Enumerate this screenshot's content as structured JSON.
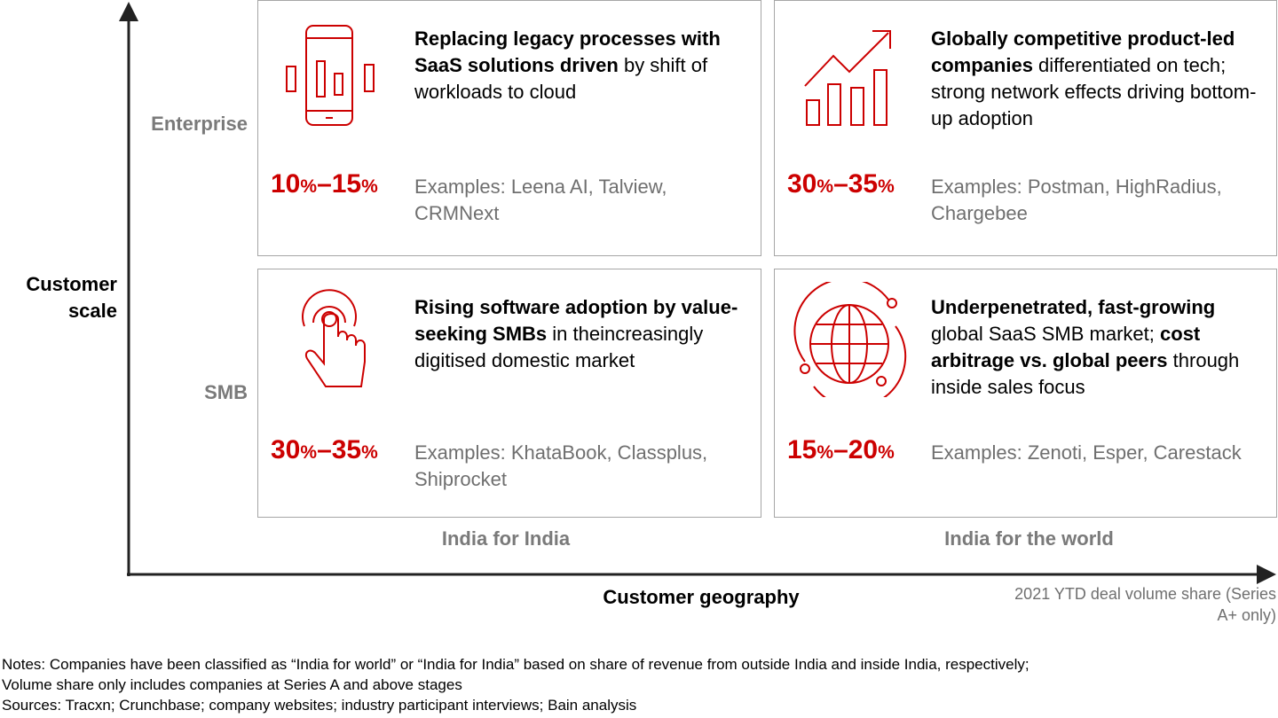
{
  "axes": {
    "y_title": "Customer scale",
    "x_title": "Customer geography",
    "rows": [
      "Enterprise",
      "SMB"
    ],
    "columns": [
      "India for India",
      "India for the world"
    ]
  },
  "legend_note": "2021 YTD deal volume share (Series A+ only)",
  "quadrants": {
    "top_left": {
      "icon": "mobile-bar-chart-icon",
      "title_bold": "Replacing legacy processes with SaaS solutions driven",
      "title_rest": " by shift of workloads to cloud",
      "pct_low": "10",
      "pct_high": "15",
      "pct_sign": "%",
      "pct_dash": "–",
      "examples": "Examples: Leena AI, Talview, CRMNext"
    },
    "top_right": {
      "icon": "growth-chart-icon",
      "title_bold": "Globally competitive product-led companies",
      "title_rest": " differentiated on tech; strong network effects driving bottom-up adoption",
      "pct_low": "30",
      "pct_high": "35",
      "pct_sign": "%",
      "pct_dash": "–",
      "examples": "Examples: Postman, HighRadius, Chargebee"
    },
    "bottom_left": {
      "icon": "touch-hand-icon",
      "title_bold": "Rising software adoption by value-seeking SMBs",
      "title_rest": " in theincreasingly digitised domestic market",
      "pct_low": "30",
      "pct_high": "35",
      "pct_sign": "%",
      "pct_dash": "–",
      "examples": "Examples: KhataBook, Classplus, Shiprocket"
    },
    "bottom_right": {
      "icon": "globe-orbit-icon",
      "title_bold": "Underpenetrated, fast-growing",
      "title_mid": " global SaaS SMB market; ",
      "title_bold2": "cost arbitrage vs. global peers",
      "title_rest": " through inside sales focus",
      "pct_low": "15",
      "pct_high": "20",
      "pct_sign": "%",
      "pct_dash": "–",
      "examples": "Examples: Zenoti, Esper, Carestack"
    }
  },
  "notes": [
    "Notes: Companies have been classified as “India for world” or “India for India” based on share of revenue from outside India and inside India, respectively;",
    "Volume share only includes companies at Series A and above stages",
    "Sources: Tracxn; Crunchbase; company websites; industry participant interviews; Bain analysis"
  ],
  "colors": {
    "accent_red": "#cc0000",
    "label_grey": "#7a7a7a",
    "border_grey": "#a6a6a6"
  }
}
